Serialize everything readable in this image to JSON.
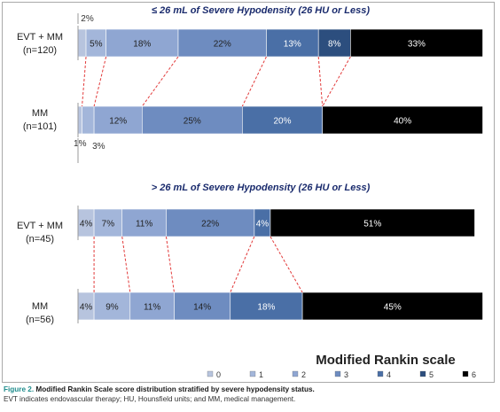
{
  "chart_data": {
    "type": "bar",
    "orientation": "horizontal-stacked-100",
    "legend_title": "Modified Rankin scale",
    "legend": [
      "0",
      "1",
      "2",
      "3",
      "4",
      "5",
      "6"
    ],
    "colors": [
      "#b7c4de",
      "#a3b6da",
      "#8fa6d2",
      "#6e8cc0",
      "#4a6fa6",
      "#2c4e7e",
      "#000000"
    ],
    "panels": [
      {
        "title": "≤ 26 mL of Severe Hypodensity (26 HU or Less)",
        "rows": [
          {
            "name": "EVT + MM",
            "n": "(n=120)",
            "values": [
              2,
              5,
              18,
              22,
              13,
              8,
              33
            ],
            "labels": [
              "2%",
              "5%",
              "18%",
              "22%",
              "13%",
              "8%",
              "33%"
            ]
          },
          {
            "name": "MM",
            "n": "(n=101)",
            "values": [
              1,
              3,
              12,
              25,
              20,
              0,
              40
            ],
            "labels": [
              "1%",
              "3%",
              "12%",
              "25%",
              "20%",
              "",
              "40%"
            ]
          }
        ]
      },
      {
        "title": "> 26 mL of Severe Hypodensity (26 HU or Less)",
        "rows": [
          {
            "name": "EVT + MM",
            "n": "(n=45)",
            "values": [
              4,
              7,
              11,
              22,
              4,
              0,
              51
            ],
            "labels": [
              "4%",
              "7%",
              "11%",
              "22%",
              "4%",
              "",
              "51%"
            ]
          },
          {
            "name": "MM",
            "n": "(n=56)",
            "values": [
              4,
              9,
              11,
              14,
              18,
              0,
              45
            ],
            "labels": [
              "4%",
              "9%",
              "11%",
              "14%",
              "18%",
              "",
              "45%"
            ]
          }
        ]
      }
    ]
  },
  "caption": {
    "label": "Figure 2.",
    "title": "Modified Rankin Scale score distribution stratified by severe hypodensity status.",
    "note": "EVT indicates endovascular therapy; HU, Hounsfield units; and MM, medical management."
  }
}
